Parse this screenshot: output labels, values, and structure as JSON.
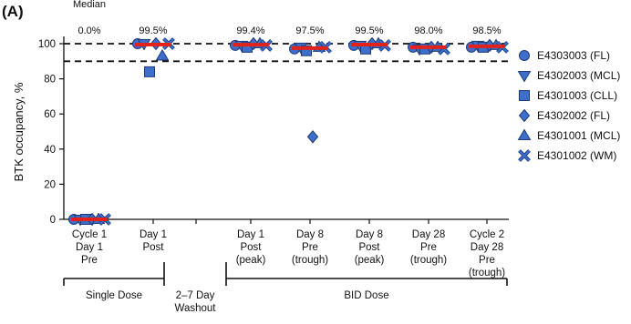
{
  "panel_label": "(A)",
  "chart_data": {
    "type": "scatter",
    "title": "",
    "xlabel": "",
    "ylabel": "BTK occupancy, %",
    "ylim": [
      0,
      108
    ],
    "yticks": [
      0,
      20,
      40,
      60,
      80,
      100
    ],
    "reference_lines": [
      100,
      90
    ],
    "categories": [
      [
        "Cycle 1",
        "Day 1",
        "Pre"
      ],
      [
        "Day 1",
        "Post"
      ],
      [
        "Day 1",
        "Post",
        "(peak)"
      ],
      [
        "Day 8",
        "Pre",
        "(trough)"
      ],
      [
        "Day 8",
        "Post",
        "(peak)"
      ],
      [
        "Day 28",
        "Pre",
        "(trough)"
      ],
      [
        "Cycle 2",
        "Day 28",
        "Pre",
        "(trough)"
      ]
    ],
    "median_header": "Median",
    "medians": [
      "0.0%",
      "99.5%",
      "99.4%",
      "97.5%",
      "99.5%",
      "98.0%",
      "98.5%"
    ],
    "median_values": [
      0.0,
      99.5,
      99.4,
      97.5,
      99.5,
      98.0,
      98.5
    ],
    "series": [
      {
        "name": "E4303003 (FL)",
        "marker": "circle",
        "values": [
          0,
          100,
          99,
          97,
          99,
          98,
          98
        ]
      },
      {
        "name": "E4302003 (MCL)",
        "marker": "triangle-down",
        "values": [
          0,
          100,
          99,
          98,
          99,
          97,
          99
        ]
      },
      {
        "name": "E4301003 (CLL)",
        "marker": "square",
        "values": [
          0,
          84,
          98,
          96,
          97,
          97,
          98
        ]
      },
      {
        "name": "E4302002 (FL)",
        "marker": "diamond",
        "values": [
          0,
          100,
          100,
          47,
          100,
          98,
          99
        ]
      },
      {
        "name": "E4301001 (MCL)",
        "marker": "triangle-up",
        "values": [
          0,
          93,
          100,
          98,
          100,
          98,
          99
        ]
      },
      {
        "name": "E4301002 (WM)",
        "marker": "x",
        "values": [
          0,
          100,
          99,
          98,
          99,
          97,
          98
        ]
      }
    ],
    "phases": [
      {
        "label": [
          "Single Dose"
        ],
        "from": 0,
        "to": 1
      },
      {
        "label": [
          "2–7 Day",
          "Washout"
        ],
        "from": null,
        "to": null
      },
      {
        "label": [
          "BID Dose"
        ],
        "from": 2,
        "to": 6
      }
    ],
    "legend_position": "right",
    "grid": false,
    "colors": {
      "marker_fill": "#3d6ec9",
      "marker_edge": "#1f3a78",
      "median_bar": "#e2231a",
      "axis": "#111111"
    }
  }
}
